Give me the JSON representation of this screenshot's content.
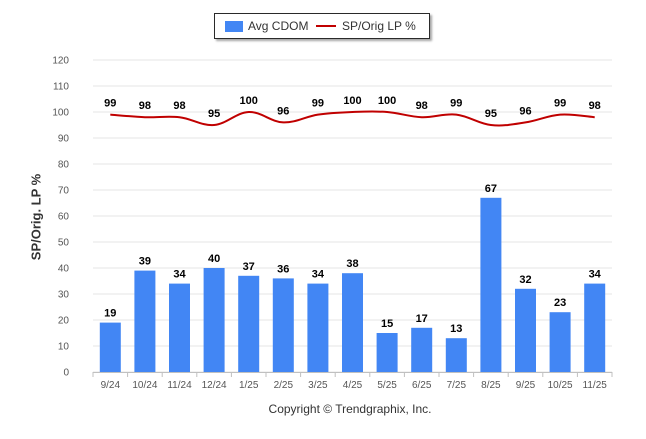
{
  "chart_data": {
    "type": "bar",
    "categories": [
      "9/24",
      "10/24",
      "11/24",
      "12/24",
      "1/25",
      "2/25",
      "3/25",
      "4/25",
      "5/25",
      "6/25",
      "7/25",
      "8/25",
      "9/25",
      "10/25",
      "11/25"
    ],
    "series": [
      {
        "name": "Avg CDOM",
        "type": "bar",
        "color": "#4286f4",
        "values": [
          19,
          39,
          34,
          40,
          37,
          36,
          34,
          38,
          15,
          17,
          13,
          67,
          32,
          23,
          34
        ]
      },
      {
        "name": "SP/Orig LP %",
        "type": "line",
        "color": "#c00000",
        "values": [
          99,
          98,
          98,
          95,
          100,
          96,
          99,
          100,
          100,
          98,
          99,
          95,
          96,
          99,
          98
        ]
      }
    ],
    "ylabel": "SP/Orig. LP %",
    "ylim": [
      0,
      120
    ],
    "yticks": [
      0,
      10,
      20,
      30,
      40,
      50,
      60,
      70,
      80,
      90,
      100,
      110,
      120
    ],
    "grid": true,
    "legend_position": "top-center",
    "data_labels": true
  },
  "footer": {
    "copyright": "Copyright © Trendgraphix, Inc."
  }
}
